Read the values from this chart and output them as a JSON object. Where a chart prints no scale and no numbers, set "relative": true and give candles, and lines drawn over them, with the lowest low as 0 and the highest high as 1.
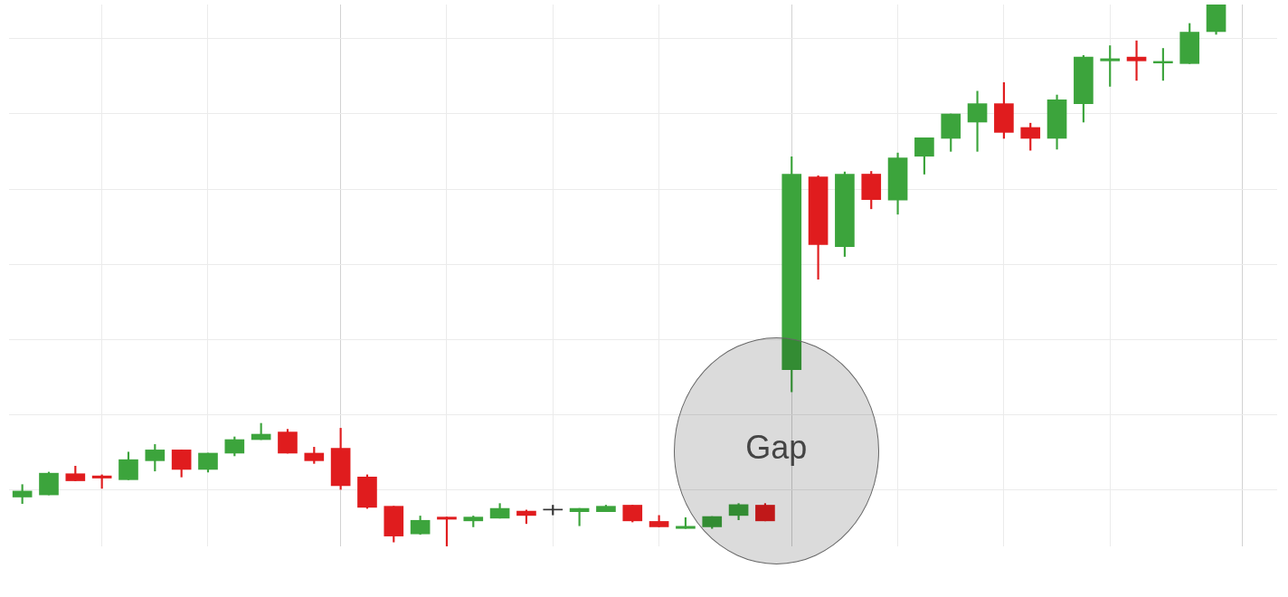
{
  "chart_data": {
    "type": "candlestick",
    "relative": true,
    "grid": true,
    "categories": [
      null,
      null,
      null,
      null,
      null,
      null,
      null,
      null,
      null,
      null,
      null,
      null,
      null,
      null,
      null,
      null,
      null,
      null,
      null,
      null,
      null,
      null,
      null,
      null,
      null,
      null,
      null,
      null,
      null,
      null,
      null,
      null,
      null,
      null,
      null,
      null,
      null,
      null,
      null,
      null,
      null,
      null,
      null,
      null,
      null,
      null
    ],
    "ohlc": [
      [
        0.091,
        0.114,
        0.079,
        0.102
      ],
      [
        0.095,
        0.137,
        0.095,
        0.135
      ],
      [
        0.134,
        0.148,
        0.121,
        0.121
      ],
      [
        0.13,
        0.132,
        0.107,
        0.126
      ],
      [
        0.123,
        0.174,
        0.123,
        0.16
      ],
      [
        0.158,
        0.188,
        0.139,
        0.178
      ],
      [
        0.178,
        0.178,
        0.128,
        0.142
      ],
      [
        0.142,
        0.172,
        0.137,
        0.172
      ],
      [
        0.172,
        0.202,
        0.167,
        0.197
      ],
      [
        0.197,
        0.227,
        0.197,
        0.207
      ],
      [
        0.211,
        0.216,
        0.172,
        0.172
      ],
      [
        0.172,
        0.183,
        0.153,
        0.158
      ],
      [
        0.181,
        0.218,
        0.105,
        0.112
      ],
      [
        0.128,
        0.132,
        0.07,
        0.072
      ],
      [
        0.074,
        0.074,
        0.008,
        0.019
      ],
      [
        0.023,
        0.056,
        0.022,
        0.048
      ],
      [
        0.054,
        0.054,
        0,
        0.05
      ],
      [
        0.047,
        0.056,
        0.036,
        0.054
      ],
      [
        0.052,
        0.079,
        0.052,
        0.07
      ],
      [
        0.065,
        0.067,
        0.042,
        0.057
      ],
      [
        0.067,
        0.076,
        0.058,
        0.067
      ],
      [
        0.064,
        0.07,
        0.038,
        0.07
      ],
      [
        0.064,
        0.076,
        0.064,
        0.074
      ],
      [
        0.076,
        0.076,
        0.045,
        0.047
      ],
      [
        0.046,
        0.057,
        0.036,
        0.036
      ],
      [
        0.033,
        0.053,
        0.033,
        0.037
      ],
      [
        0.036,
        0.055,
        0.033,
        0.055
      ],
      [
        0.057,
        0.079,
        0.049,
        0.077
      ],
      [
        0.076,
        0.079,
        0.047,
        0.047
      ],
      [
        0.326,
        0.719,
        0.285,
        0.687
      ],
      [
        0.682,
        0.684,
        0.493,
        0.557
      ],
      [
        0.553,
        0.691,
        0.535,
        0.687
      ],
      [
        0.687,
        0.692,
        0.623,
        0.64
      ],
      [
        0.639,
        0.726,
        0.613,
        0.717
      ],
      [
        0.72,
        0.754,
        0.687,
        0.754
      ],
      [
        0.753,
        0.798,
        0.729,
        0.798
      ],
      [
        0.783,
        0.84,
        0.729,
        0.817
      ],
      [
        0.817,
        0.856,
        0.753,
        0.764
      ],
      [
        0.773,
        0.781,
        0.731,
        0.753
      ],
      [
        0.753,
        0.833,
        0.733,
        0.824
      ],
      [
        0.817,
        0.906,
        0.783,
        0.903
      ],
      [
        0.896,
        0.924,
        0.849,
        0.9
      ],
      [
        0.903,
        0.933,
        0.86,
        0.896
      ],
      [
        0.892,
        0.919,
        0.86,
        0.895
      ],
      [
        0.891,
        0.965,
        0.891,
        0.949
      ],
      [
        0.95,
        1,
        0.945,
        1
      ]
    ],
    "colors": [
      "#3ca43c",
      "#3ca43c",
      "#e01c1e",
      "#e01c1e",
      "#3ca43c",
      "#3ca43c",
      "#e01c1e",
      "#3ca43c",
      "#3ca43c",
      "#3ca43c",
      "#e01c1e",
      "#e01c1e",
      "#e01c1e",
      "#e01c1e",
      "#e01c1e",
      "#3ca43c",
      "#e01c1e",
      "#3ca43c",
      "#3ca43c",
      "#e01c1e",
      "#333333",
      "#3ca43c",
      "#3ca43c",
      "#e01c1e",
      "#e01c1e",
      "#3ca43c",
      "#3ca43c",
      "#3ca43c",
      "#e01c1e",
      "#3ca43c",
      "#e01c1e",
      "#3ca43c",
      "#e01c1e",
      "#3ca43c",
      "#3ca43c",
      "#3ca43c",
      "#3ca43c",
      "#e01c1e",
      "#e01c1e",
      "#3ca43c",
      "#3ca43c",
      "#3ca43c",
      "#e01c1e",
      "#3ca43c",
      "#3ca43c",
      "#3ca43c"
    ],
    "annotations": [
      "Gap"
    ]
  }
}
